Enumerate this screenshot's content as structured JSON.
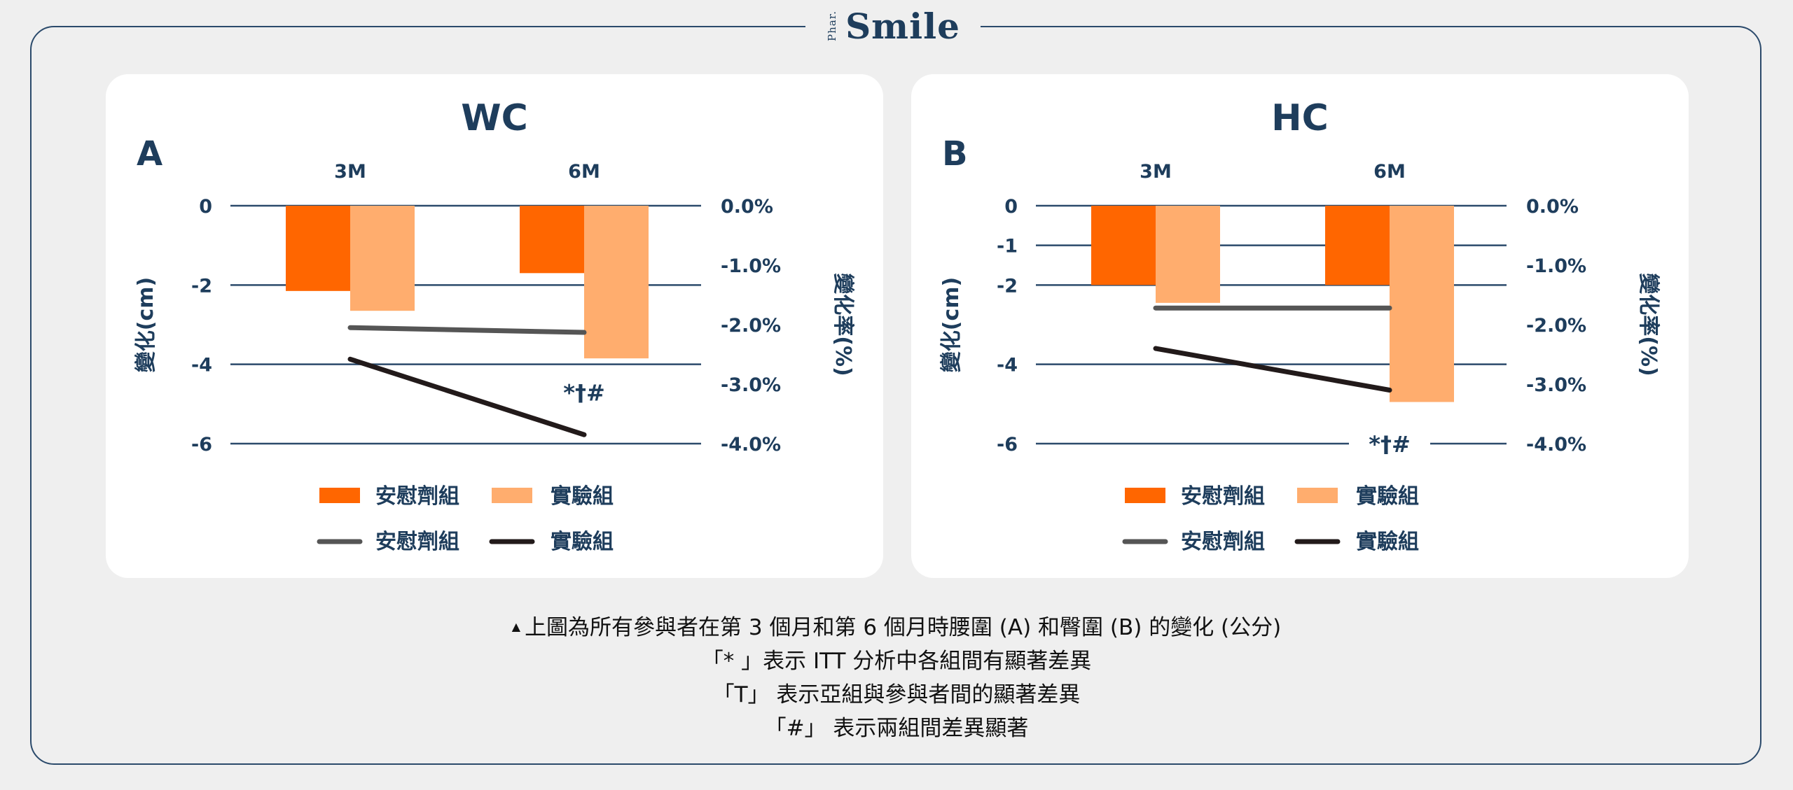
{
  "logo": {
    "small": "Phar.",
    "main": "Smile"
  },
  "colors": {
    "placebo_bar": "#ff6600",
    "experiment_bar": "#ffad6e",
    "placebo_line": "#555555",
    "experiment_line": "#221a1a",
    "axis_text": "#1e3d5c",
    "grid": "#2b4a6b"
  },
  "legend": {
    "bar_placebo": "安慰劑組",
    "bar_experiment": "實驗組",
    "line_placebo": "安慰劑組",
    "line_experiment": "實驗組"
  },
  "chart_data": [
    {
      "type": "bar",
      "panel_label": "A",
      "title": "WC",
      "categories": [
        "3M",
        "6M"
      ],
      "ylabel": "變化(cm)",
      "y2label": "變化率(%)",
      "ylim": [
        -6,
        0
      ],
      "yticks": [
        0,
        -2,
        -4,
        -6
      ],
      "y2lim": [
        -4.0,
        0.0
      ],
      "y2ticks": [
        "0.0%",
        "-1.0%",
        "-2.0%",
        "-3.0%",
        "-4.0%"
      ],
      "series": [
        {
          "name": "安慰劑組",
          "kind": "bar",
          "values": [
            -2.15,
            -1.7
          ]
        },
        {
          "name": "實驗組",
          "kind": "bar",
          "values": [
            -2.65,
            -3.85
          ]
        },
        {
          "name": "安慰劑組",
          "kind": "line",
          "axis": "right",
          "values": [
            -2.05,
            -2.13
          ]
        },
        {
          "name": "實驗組",
          "kind": "line",
          "axis": "right",
          "values": [
            -2.58,
            -3.85
          ]
        }
      ],
      "annotation": {
        "text": "*†#",
        "category": 1,
        "value": -4.7
      }
    },
    {
      "type": "bar",
      "panel_label": "B",
      "title": "HC",
      "categories": [
        "3M",
        "6M"
      ],
      "ylabel": "變化(cm)",
      "y2label": "變化率(%)",
      "ylim": [
        -6,
        0
      ],
      "yticks": [
        0,
        -1,
        -2,
        -4,
        -6
      ],
      "y2lim": [
        -4.0,
        0.0
      ],
      "y2ticks": [
        "0.0%",
        "-1.0%",
        "-2.0%",
        "-3.0%",
        "-4.0%"
      ],
      "series": [
        {
          "name": "安慰劑組",
          "kind": "bar",
          "values": [
            -2.0,
            -2.0
          ]
        },
        {
          "name": "實驗組",
          "kind": "bar",
          "values": [
            -2.45,
            -4.95
          ]
        },
        {
          "name": "安慰劑組",
          "kind": "line",
          "axis": "right",
          "values": [
            -1.72,
            -1.72
          ]
        },
        {
          "name": "實驗組",
          "kind": "line",
          "axis": "right",
          "values": [
            -2.4,
            -3.1
          ]
        }
      ],
      "annotation": {
        "text": "*†#",
        "category": 1,
        "value": -6.0
      }
    }
  ],
  "caption": {
    "line1_marker": "▲",
    "line1": "上圖為所有參與者在第 3 個月和第 6 個月時腰圍 (A) 和臀圍 (B) 的變化 (公分)",
    "line2": "「* 」表示 ITT 分析中各組間有顯著差異",
    "line3": "「T」 表示亞組與參與者間的顯著差異",
    "line4": "「#」 表示兩組間差異顯著"
  }
}
